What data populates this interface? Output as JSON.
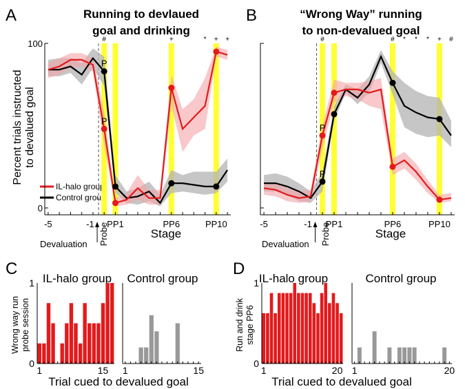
{
  "colors": {
    "il": "#e31a1c",
    "il_band": "#f4a3a8",
    "control": "#000000",
    "control_band": "#b3b3b3",
    "yellow": "#ffff33",
    "hist_il": "#e31a1c",
    "hist_control": "#999999"
  },
  "panels": {
    "A": {
      "letter": "A",
      "title_lines": [
        "Running to devlaued",
        "goal and drinking"
      ]
    },
    "B": {
      "letter": "B",
      "title_lines": [
        "“Wrong Way” running",
        "to non-devalued goal"
      ]
    },
    "C": {
      "letter": "C"
    },
    "D": {
      "letter": "D"
    }
  },
  "line_shared": {
    "ylabel_lines": [
      "Percent trials instructed",
      "to devalued goal"
    ],
    "xlabel": "Stage",
    "y_ticks": [
      "100",
      "0"
    ],
    "x_ticks": [
      "-5",
      "-1",
      "PP1",
      "PP6",
      "PP10"
    ],
    "probe_label": "Probe",
    "devaluation_label": "Devaluation",
    "legend": [
      "IL-halo group",
      "Control group"
    ]
  },
  "hist_shared": {
    "xlabel": "Trial cued to devalued goal",
    "titles": [
      "IL-halo group",
      "Control group"
    ],
    "C_ylabel_lines": [
      "Wrong way run",
      "probe session"
    ],
    "D_ylabel_lines": [
      "Run and drink",
      "stage PP6"
    ],
    "y_ticks": [
      "1",
      "0"
    ],
    "C_x_ticks": [
      "1",
      "15"
    ],
    "D_x_ticks": [
      "1",
      "20"
    ]
  },
  "chart_data": [
    {
      "panel": "A",
      "type": "line",
      "title": "Running to devlaued goal and drinking",
      "xlabel": "Stage",
      "ylabel": "Percent trials instructed to devalued goal",
      "ylim": [
        0,
        100
      ],
      "x_ticks": [
        "-5",
        "-1",
        "PP1",
        "PP6",
        "PP10"
      ],
      "x": [
        -5,
        -4,
        -3,
        -2,
        -1,
        0,
        1,
        2,
        3,
        4,
        5,
        6,
        7,
        8,
        9,
        10,
        11
      ],
      "probe_x": 0,
      "devaluation_x": -0.5,
      "highlight_x": [
        0,
        1,
        6,
        10
      ],
      "significance": [
        {
          "x": 0,
          "mark": "#"
        },
        {
          "x": 6,
          "mark": "+"
        },
        {
          "x": 9,
          "mark": "*"
        },
        {
          "x": 10,
          "mark": "+"
        },
        {
          "x": 11,
          "mark": "+"
        }
      ],
      "series": [
        {
          "name": "IL-halo group",
          "values": [
            84,
            86,
            90,
            90,
            87,
            48,
            3,
            5,
            12,
            6,
            6,
            73,
            48,
            55,
            62,
            95,
            93
          ],
          "lower": [
            79,
            81,
            85,
            86,
            83,
            38,
            1,
            2,
            5,
            2,
            2,
            62,
            34,
            44,
            48,
            92,
            90
          ],
          "upper": [
            88,
            91,
            94,
            94,
            91,
            58,
            6,
            9,
            20,
            11,
            11,
            81,
            60,
            66,
            79,
            98,
            96
          ],
          "markers": {
            "x": [
              0,
              1,
              6,
              10
            ],
            "labels": [
              "P",
              "",
              "",
              ""
            ]
          }
        },
        {
          "name": "Control group",
          "values": [
            84,
            84,
            86,
            81,
            91,
            83,
            13,
            6,
            7,
            10,
            3,
            15,
            15,
            14,
            13,
            13,
            23
          ],
          "lower": [
            80,
            80,
            82,
            75,
            85,
            74,
            9,
            3,
            2,
            4,
            1,
            9,
            10,
            9,
            8,
            9,
            16
          ],
          "upper": [
            90,
            91,
            91,
            88,
            97,
            92,
            20,
            10,
            12,
            16,
            8,
            23,
            20,
            22,
            22,
            22,
            30
          ],
          "markers": {
            "x": [
              0,
              1,
              6,
              10
            ],
            "labels": [
              "P",
              "",
              "",
              ""
            ]
          }
        }
      ]
    },
    {
      "panel": "B",
      "type": "line",
      "title": "“Wrong Way” running to non-devalued goal",
      "xlabel": "Stage",
      "ylabel": "Percent trials instructed to devalued goal",
      "ylim": [
        0,
        100
      ],
      "x_ticks": [
        "-5",
        "-1",
        "PP1",
        "PP6",
        "PP10"
      ],
      "x": [
        -5,
        -4,
        -3,
        -2,
        -1,
        0,
        1,
        2,
        3,
        4,
        5,
        6,
        7,
        8,
        9,
        10,
        11
      ],
      "probe_x": 0,
      "devaluation_x": -0.5,
      "highlight_x": [
        0,
        1,
        6,
        10
      ],
      "significance": [
        {
          "x": 0,
          "mark": "#"
        },
        {
          "x": 6,
          "mark": "#"
        },
        {
          "x": 7,
          "mark": "*"
        },
        {
          "x": 8,
          "mark": "*"
        },
        {
          "x": 9,
          "mark": "*"
        },
        {
          "x": 10,
          "mark": "+"
        },
        {
          "x": 11,
          "mark": "#"
        }
      ],
      "series": [
        {
          "name": "IL-halo group",
          "values": [
            12,
            11,
            8,
            6,
            7,
            44,
            70,
            72,
            72,
            70,
            72,
            25,
            29,
            22,
            13,
            5,
            6
          ],
          "lower": [
            8,
            7,
            4,
            3,
            4,
            36,
            64,
            68,
            66,
            62,
            60,
            20,
            24,
            17,
            9,
            3,
            4
          ],
          "upper": [
            16,
            15,
            12,
            10,
            11,
            50,
            78,
            76,
            76,
            77,
            79,
            30,
            34,
            27,
            17,
            8,
            9
          ],
          "markers": {
            "x": [
              0,
              1,
              6,
              10
            ],
            "labels": [
              "P",
              "",
              "",
              ""
            ]
          }
        },
        {
          "name": "Control group",
          "values": [
            15,
            15,
            13,
            10,
            6,
            16,
            57,
            72,
            67,
            75,
            92,
            76,
            62,
            58,
            55,
            54,
            44
          ],
          "lower": [
            10,
            10,
            8,
            4,
            3,
            10,
            53,
            70,
            63,
            70,
            88,
            69,
            49,
            45,
            43,
            44,
            37
          ],
          "upper": [
            20,
            21,
            19,
            15,
            10,
            22,
            62,
            75,
            72,
            80,
            96,
            83,
            76,
            71,
            68,
            67,
            53
          ],
          "markers": {
            "x": [
              0,
              1,
              6,
              10
            ],
            "labels": [
              "P",
              "",
              "",
              ""
            ]
          }
        }
      ]
    },
    {
      "panel": "C-IL",
      "type": "bar",
      "title": "IL-halo group",
      "xlabel": "Trial cued to devalued goal",
      "ylabel": "Wrong way run probe session",
      "ylim": [
        0,
        1
      ],
      "x_ticks": [
        "1",
        "15"
      ],
      "color": "#e31a1c",
      "categories": [
        1,
        2,
        3,
        4,
        5,
        6,
        7,
        8,
        9,
        10,
        11,
        12,
        13,
        14,
        15,
        16,
        17
      ],
      "values": [
        0.25,
        0.25,
        0.75,
        0.5,
        0,
        0.25,
        0.5,
        0.75,
        0.5,
        0.25,
        0.75,
        0.5,
        0.5,
        0.5,
        0.75,
        1,
        1
      ]
    },
    {
      "panel": "C-Control",
      "type": "bar",
      "title": "Control group",
      "xlabel": "Trial cued to devalued goal",
      "ylim": [
        0,
        1
      ],
      "x_ticks": [
        "1",
        "15"
      ],
      "color": "#999999",
      "categories": [
        1,
        2,
        3,
        4,
        5,
        6,
        7,
        8,
        9,
        10,
        11,
        12,
        13,
        14,
        15
      ],
      "values": [
        0,
        0,
        0,
        0.2,
        0.2,
        0.6,
        0.4,
        0,
        0,
        0,
        0.5,
        0,
        0,
        0,
        0
      ]
    },
    {
      "panel": "D-IL",
      "type": "bar",
      "title": "IL-halo group",
      "xlabel": "Trial cued to devalued goal",
      "ylabel": "Run and drink stage PP6",
      "ylim": [
        0,
        1
      ],
      "x_ticks": [
        "1",
        "20"
      ],
      "color": "#e31a1c",
      "categories": [
        1,
        2,
        3,
        4,
        5,
        6,
        7,
        8,
        9,
        10,
        11,
        12,
        13,
        14,
        15,
        16,
        17,
        18,
        19,
        20,
        21
      ],
      "values": [
        0.625,
        0.625,
        0.875,
        0.625,
        0.875,
        0.875,
        0.875,
        0.875,
        1,
        0.875,
        0.875,
        0.875,
        0.875,
        0.75,
        0.625,
        0.875,
        1,
        0.75,
        0.875,
        0.75,
        0.625
      ]
    },
    {
      "panel": "D-Control",
      "type": "bar",
      "title": "Control group",
      "xlabel": "Trial cued to devalued goal",
      "ylim": [
        0,
        1
      ],
      "x_ticks": [
        "1",
        "20"
      ],
      "color": "#999999",
      "categories": [
        1,
        2,
        3,
        4,
        5,
        6,
        7,
        8,
        9,
        10,
        11,
        12,
        13,
        14,
        15,
        16,
        17,
        18,
        19,
        20
      ],
      "values": [
        0,
        0.2,
        0,
        0,
        0.4,
        0,
        0,
        0.2,
        0,
        0.2,
        0.2,
        0.2,
        0.2,
        0,
        0,
        0,
        0,
        0,
        0.2,
        0
      ]
    }
  ]
}
